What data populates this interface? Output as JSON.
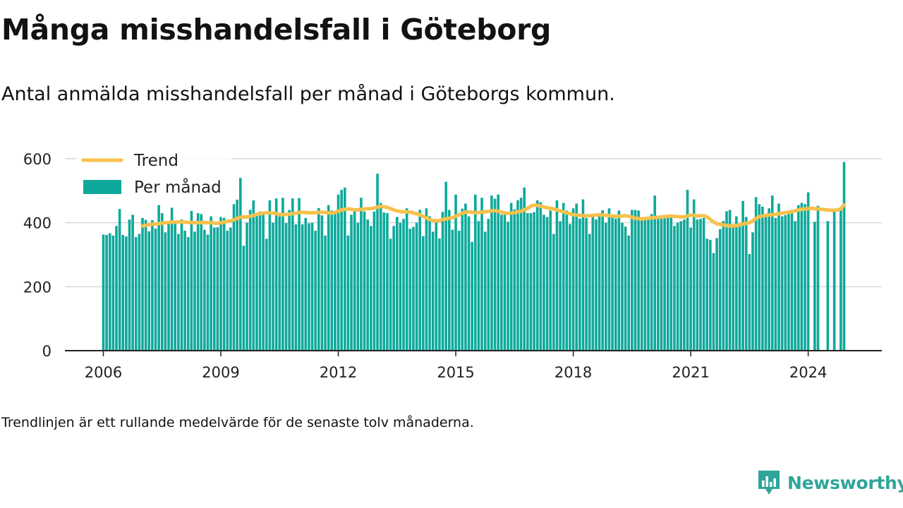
{
  "title": "Många misshandelsfall i Göteborg",
  "subtitle": "Antal anmälda misshandelsfall per månad i Göteborgs kommun.",
  "note": "Trendlinjen är ett rullande medelvärde för de senaste tolv månaderna.",
  "brand": {
    "name": "Newsworthy",
    "icon": "newsworthy-logo-icon",
    "color": "#2fa59a"
  },
  "colors": {
    "bars": "#0ea99b",
    "trend": "#f7c14d",
    "grid": "#d6d6d6",
    "axis": "#222222"
  },
  "chart_data": {
    "type": "bar",
    "ylim": [
      0,
      600
    ],
    "yticks": [
      0,
      200,
      400,
      600
    ],
    "xticks": [
      "2006",
      "2009",
      "2012",
      "2015",
      "2018",
      "2021",
      "2024"
    ],
    "legend": {
      "placement": "top-left",
      "entries": [
        {
          "name": "Trend",
          "kind": "line"
        },
        {
          "name": "Per månad",
          "kind": "bar"
        }
      ]
    },
    "start": "2006-01",
    "series": [
      {
        "name": "Per månad",
        "kind": "bar",
        "values": [
          363,
          362,
          367,
          360,
          390,
          443,
          362,
          357,
          410,
          425,
          355,
          365,
          415,
          409,
          373,
          408,
          382,
          455,
          430,
          370,
          397,
          447,
          398,
          365,
          410,
          375,
          355,
          437,
          372,
          430,
          427,
          378,
          363,
          420,
          385,
          386,
          418,
          415,
          375,
          385,
          458,
          472,
          540,
          328,
          400,
          440,
          470,
          425,
          435,
          428,
          350,
          470,
          400,
          476,
          420,
          478,
          399,
          440,
          476,
          395,
          477,
          395,
          415,
          398,
          400,
          375,
          446,
          423,
          360,
          455,
          438,
          427,
          488,
          503,
          510,
          360,
          425,
          440,
          400,
          478,
          435,
          410,
          390,
          435,
          553,
          462,
          432,
          430,
          350,
          390,
          418,
          400,
          412,
          445,
          381,
          387,
          400,
          440,
          358,
          445,
          420,
          372,
          402,
          351,
          434,
          528,
          440,
          378,
          488,
          375,
          444,
          460,
          420,
          340,
          488,
          405,
          478,
          372,
          412,
          485,
          475,
          488,
          425,
          428,
          403,
          462,
          442,
          470,
          478,
          510,
          430,
          430,
          433,
          470,
          464,
          425,
          418,
          438,
          365,
          470,
          405,
          462,
          438,
          396,
          445,
          460,
          413,
          473,
          415,
          365,
          418,
          410,
          428,
          439,
          400,
          445,
          425,
          413,
          438,
          400,
          388,
          360,
          440,
          440,
          438,
          415,
          418,
          412,
          427,
          485,
          413,
          413,
          420,
          425,
          417,
          390,
          400,
          405,
          410,
          503,
          385,
          473,
          410,
          412,
          415,
          350,
          346,
          305,
          352,
          380,
          405,
          436,
          440,
          395,
          420,
          392,
          468,
          418,
          302,
          370,
          480,
          458,
          450,
          420,
          445,
          485,
          415,
          460,
          420,
          424,
          427,
          440,
          405,
          455,
          462,
          458,
          495,
          null,
          403,
          453,
          null,
          null,
          405,
          null,
          436,
          null,
          440,
          590
        ]
      },
      {
        "name": "Trend",
        "kind": "line",
        "values": [
          null,
          null,
          null,
          null,
          null,
          null,
          null,
          null,
          null,
          null,
          null,
          null,
          390,
          392,
          394,
          395,
          396,
          397,
          399,
          400,
          401,
          402,
          402,
          402,
          402,
          402,
          401,
          401,
          400,
          400,
          400,
          401,
          400,
          400,
          399,
          398,
          400,
          402,
          404,
          406,
          409,
          414,
          417,
          418,
          418,
          420,
          423,
          426,
          428,
          430,
          431,
          431,
          430,
          428,
          426,
          425,
          426,
          427,
          428,
          430,
          432,
          433,
          432,
          431,
          431,
          431,
          432,
          433,
          432,
          431,
          430,
          432,
          436,
          440,
          442,
          443,
          442,
          440,
          440,
          442,
          443,
          444,
          444,
          446,
          449,
          451,
          450,
          448,
          444,
          440,
          437,
          435,
          434,
          434,
          433,
          431,
          428,
          425,
          420,
          415,
          410,
          407,
          406,
          407,
          410,
          412,
          414,
          416,
          420,
          425,
          430,
          433,
          434,
          433,
          431,
          432,
          433,
          434,
          435,
          437,
          438,
          436,
          433,
          430,
          429,
          430,
          432,
          434,
          436,
          440,
          445,
          452,
          455,
          454,
          452,
          449,
          447,
          445,
          443,
          440,
          437,
          434,
          431,
          428,
          425,
          424,
          423,
          422,
          422,
          422,
          423,
          424,
          425,
          424,
          423,
          422,
          421,
          420,
          420,
          421,
          422,
          420,
          417,
          414,
          413,
          412,
          413,
          414,
          415,
          416,
          417,
          418,
          419,
          420,
          421,
          420,
          419,
          418,
          418,
          421,
          424,
          423,
          421,
          422,
          422,
          418,
          410,
          402,
          397,
          395,
          393,
          391,
          390,
          390,
          391,
          393,
          396,
          398,
          400,
          406,
          413,
          419,
          421,
          423,
          424,
          425,
          426,
          428,
          430,
          432,
          433,
          434,
          437,
          440,
          442,
          443,
          444,
          445,
          444,
          443,
          442,
          441,
          440,
          439,
          439,
          440,
          443,
          456
        ]
      }
    ]
  }
}
